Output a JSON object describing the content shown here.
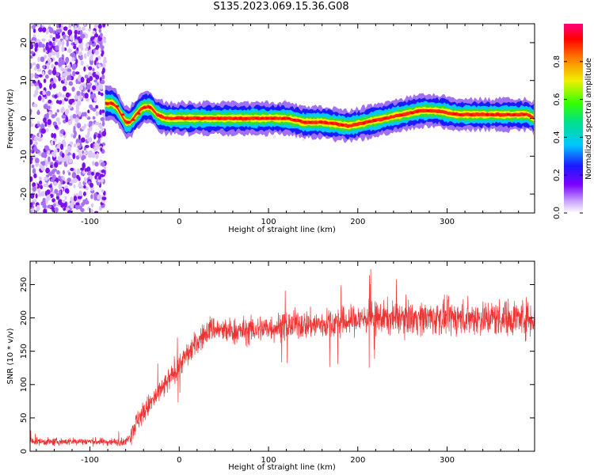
{
  "chart_data": [
    {
      "type": "heatmap",
      "title": "S135.2023.069.15.36.G08",
      "xlabel": "Height of straight line (km)",
      "ylabel": "Frequency (Hz)",
      "xlim": [
        -167,
        398
      ],
      "ylim": [
        -25,
        25
      ],
      "x_ticks": [
        -100,
        0,
        100,
        200,
        300
      ],
      "y_ticks": [
        -20,
        -10,
        0,
        10,
        20
      ],
      "colorbar": {
        "label": "Normalized spectral amplitude",
        "range": [
          0,
          1
        ],
        "ticks": [
          0.0,
          0.2,
          0.4,
          0.6,
          0.8
        ]
      },
      "noise_region_x": [
        -167,
        -83
      ],
      "ridge": {
        "x": [
          -83,
          -75,
          -70,
          -65,
          -60,
          -55,
          -48,
          -40,
          -32,
          -25,
          -15,
          0,
          30,
          60,
          90,
          120,
          140,
          160,
          190,
          210,
          230,
          250,
          270,
          290,
          310,
          330,
          350,
          370,
          390,
          398
        ],
        "freq": [
          4,
          4,
          3,
          1,
          -1,
          -1,
          1,
          3,
          3,
          1,
          0,
          0,
          0,
          0,
          0,
          0,
          -1,
          -1,
          -2,
          -1,
          0,
          1,
          2,
          2,
          1,
          1,
          1,
          1,
          1,
          0
        ]
      }
    },
    {
      "type": "line",
      "color": "#ee3333",
      "xlabel": "Height of straight line (km)",
      "ylabel": "SNR (10 * v/v)",
      "xlim": [
        -167,
        398
      ],
      "ylim": [
        0,
        285
      ],
      "x_ticks": [
        -100,
        0,
        100,
        200,
        300
      ],
      "y_ticks": [
        0,
        50,
        100,
        150,
        200,
        250
      ],
      "trend": {
        "x": [
          -167,
          -140,
          -110,
          -80,
          -60,
          -55,
          -45,
          -30,
          -15,
          0,
          15,
          25,
          35,
          50,
          70,
          100,
          130,
          160,
          190,
          210,
          240,
          270,
          300,
          330,
          360,
          398
        ],
        "y": [
          15,
          14,
          15,
          14,
          14,
          25,
          50,
          75,
          100,
          130,
          155,
          170,
          185,
          180,
          180,
          185,
          190,
          190,
          195,
          200,
          200,
          200,
          200,
          200,
          200,
          200
        ]
      },
      "noise_amplitude": [
        12,
        30
      ]
    }
  ]
}
